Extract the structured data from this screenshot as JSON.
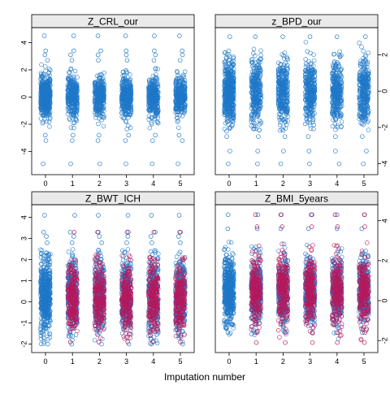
{
  "chart_data": {
    "type": "scatter",
    "xlabel": "Imputation number",
    "x_categories": [
      "0",
      "1",
      "2",
      "3",
      "4",
      "5"
    ],
    "colors": {
      "observed": "#1f78c8",
      "imputed": "#b8185a"
    },
    "panels": [
      {
        "name": "Z_CRL_our",
        "ylim": [
          -5.7,
          5.1
        ],
        "yticks": [
          -4,
          -2,
          0,
          2,
          4
        ],
        "series": [
          {
            "name": "observed",
            "color": "#1f78c8",
            "center": 0.0,
            "sd": 0.75,
            "min": -2.4,
            "max": 2.4,
            "outliers": [
              4.5,
              3.4,
              3.1,
              2.7,
              -2.8,
              -3.2,
              -4.9
            ]
          },
          {
            "name": "imputed",
            "color": "#b8185a",
            "center": 0,
            "sd": 0,
            "min": 0,
            "max": 0,
            "outliers": []
          }
        ]
      },
      {
        "name": "z_BPD_our",
        "ylim": [
          -4.6,
          3.5
        ],
        "yticks": [
          -4,
          -2,
          0,
          2
        ],
        "series": [
          {
            "name": "observed",
            "color": "#1f78c8",
            "center": 0.0,
            "sd": 0.85,
            "min": -2.2,
            "max": 2.8,
            "outliers": [
              3.0,
              -2.5,
              -3.3,
              -4.0
            ]
          },
          {
            "name": "imputed",
            "color": "#b8185a",
            "center": 0,
            "sd": 0,
            "min": 0,
            "max": 0,
            "outliers": []
          }
        ]
      },
      {
        "name": "Z_BWT_ICH",
        "ylim": [
          -2.4,
          4.6
        ],
        "yticks": [
          -2,
          -1,
          0,
          1,
          2,
          3,
          4
        ],
        "series": [
          {
            "name": "observed",
            "color": "#1f78c8",
            "center": 0.3,
            "sd": 0.85,
            "min": -2.0,
            "max": 2.5,
            "outliers": [
              4.1,
              3.3,
              3.1,
              2.8,
              -2.0
            ]
          },
          {
            "name": "imputed",
            "color": "#b8185a",
            "center": 0.2,
            "sd": 0.8,
            "min": -1.8,
            "max": 2.3,
            "outliers": [
              3.3,
              -1.9
            ]
          }
        ]
      },
      {
        "name": "Z_BMI_5years",
        "ylim": [
          -2.6,
          4.8
        ],
        "yticks": [
          -2,
          0,
          2,
          4
        ],
        "series": [
          {
            "name": "observed",
            "color": "#1f78c8",
            "center": 0.5,
            "sd": 0.8,
            "min": -2.0,
            "max": 3.0,
            "outliers": [
              4.3,
              3.6,
              -1.6
            ]
          },
          {
            "name": "imputed",
            "color": "#b8185a",
            "center": 0.5,
            "sd": 0.8,
            "min": -2.0,
            "max": 2.9,
            "outliers": [
              4.3,
              3.7,
              -1.6,
              -2.1
            ]
          }
        ]
      }
    ]
  }
}
